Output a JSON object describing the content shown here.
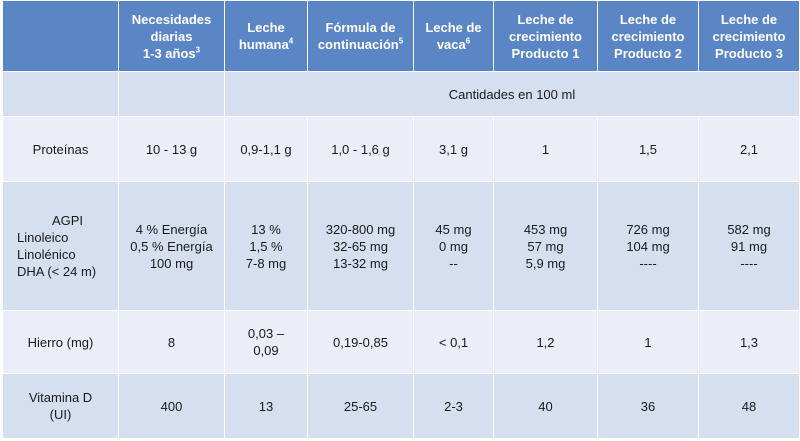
{
  "header": {
    "col0": "",
    "col1": [
      "Necesidades",
      "diarias",
      "1-3 años"
    ],
    "col1_sup": "3",
    "col2": [
      "Leche",
      "humana"
    ],
    "col2_sup": "4",
    "col3": [
      "Fórmula de",
      "continuación"
    ],
    "col3_sup": "5",
    "col4": [
      "Leche de",
      "vaca"
    ],
    "col4_sup": "6",
    "col5": [
      "Leche de",
      "crecimiento",
      "Producto 1"
    ],
    "col6": [
      "Leche de",
      "crecimiento",
      "Producto 2"
    ],
    "col7": [
      "Leche de",
      "crecimiento",
      "Producto 3"
    ]
  },
  "subheader": "Cantidades en 100 ml",
  "rows": {
    "proteinas": {
      "label": "Proteínas",
      "values": [
        "10 - 13 g",
        "0,9-1,1 g",
        "1,0 - 1,6 g",
        "3,1 g",
        "1",
        "1,5",
        "2,1"
      ]
    },
    "agpi": {
      "label_title": "AGPI",
      "label_lines": [
        "Linoleico",
        "Linolénico",
        "DHA (< 24 m)"
      ],
      "col1": [
        "4 % Energía",
        "0,5 % Energía",
        "100 mg"
      ],
      "col2": [
        "13 %",
        "1,5 %",
        "7-8 mg"
      ],
      "col3": [
        "320-800 mg",
        "32-65 mg",
        "13-32 mg"
      ],
      "col4": [
        "45 mg",
        "0 mg",
        "--"
      ],
      "col5": [
        "453 mg",
        "57 mg",
        "5,9 mg"
      ],
      "col6": [
        "726 mg",
        "104 mg",
        "----"
      ],
      "col7": [
        "582 mg",
        "91 mg",
        "----"
      ]
    },
    "hierro": {
      "label": "Hierro (mg)",
      "values": [
        "8",
        "0,03 –",
        "0,19-0,85",
        "< 0,1",
        "1,2",
        "1",
        "1,3"
      ],
      "col2_line2": "0,09"
    },
    "vitamina": {
      "label_lines": [
        "Vitamina D",
        "(UI)"
      ],
      "values": [
        "400",
        "13",
        "25-65",
        "2-3",
        "40",
        "36",
        "48"
      ]
    }
  }
}
